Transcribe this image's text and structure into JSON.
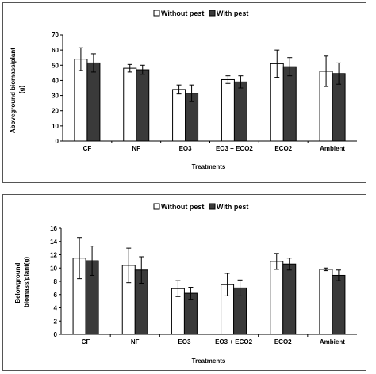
{
  "legend": {
    "without_label": "Without pest",
    "with_label": "With pest"
  },
  "colors": {
    "without": "#ffffff",
    "with": "#3a3a3a",
    "frame": "#555555",
    "stroke": "#000000"
  },
  "chart_data": [
    {
      "type": "bar",
      "title": "",
      "xlabel": "Treatments",
      "ylabel": "Aboveground biomass/plant (g)",
      "ylim": [
        0,
        70
      ],
      "yticks": [
        0,
        10,
        20,
        30,
        40,
        50,
        60,
        70
      ],
      "categories": [
        "CF",
        "NF",
        "EO3",
        "EO3 + ECO2",
        "ECO2",
        "Ambient"
      ],
      "series": [
        {
          "name": "Without pest",
          "values": [
            54,
            48,
            34,
            40.5,
            51,
            46
          ],
          "errors": [
            7.5,
            2.5,
            3,
            2.5,
            9,
            10
          ]
        },
        {
          "name": "With pest",
          "values": [
            51.5,
            47,
            31.5,
            39,
            49,
            44.5
          ],
          "errors": [
            6,
            3,
            5.5,
            4,
            6,
            7
          ]
        }
      ],
      "legend_position": "top"
    },
    {
      "type": "bar",
      "title": "",
      "xlabel": "Treatments",
      "ylabel": "Belowground biomass/plant(g)",
      "ylim": [
        0,
        16
      ],
      "yticks": [
        0,
        2,
        4,
        6,
        8,
        10,
        12,
        14,
        16
      ],
      "categories": [
        "CF",
        "NF",
        "EO3",
        "EO3 + ECO2",
        "ECO2",
        "Ambient"
      ],
      "series": [
        {
          "name": "Without pest",
          "values": [
            11.5,
            10.4,
            6.9,
            7.5,
            11,
            9.8
          ],
          "errors": [
            3.1,
            2.6,
            1.2,
            1.7,
            1.2,
            0.2
          ]
        },
        {
          "name": "With pest",
          "values": [
            11.1,
            9.7,
            6.2,
            7,
            10.6,
            8.9
          ],
          "errors": [
            2.2,
            2,
            0.9,
            1.2,
            0.9,
            0.8
          ]
        }
      ],
      "legend_position": "top"
    }
  ]
}
